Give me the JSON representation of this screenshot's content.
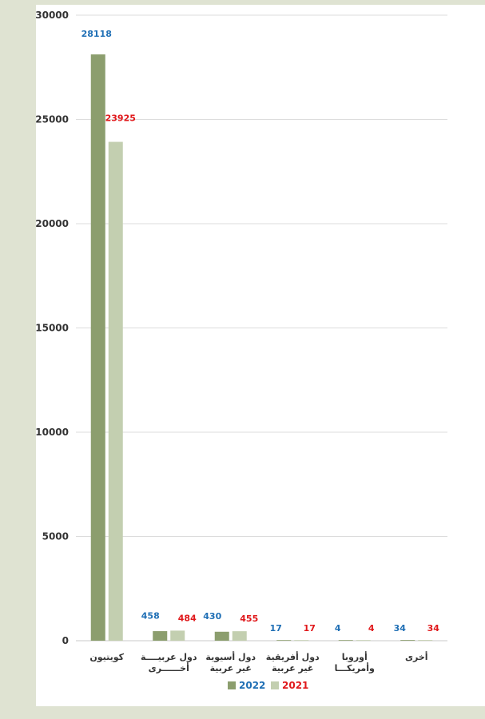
{
  "chart_data": {
    "type": "bar",
    "categories": [
      [
        "كويتيون"
      ],
      [
        "دول عربيــــة",
        "أخــــــرى"
      ],
      [
        "دول أسيوية",
        "غير عربية"
      ],
      [
        "دول أفريقية",
        "غير عربية"
      ],
      [
        "أوروبا",
        "وأمريكـــا"
      ],
      [
        "أخرى"
      ]
    ],
    "series": [
      {
        "name": "2022",
        "values": [
          28118,
          458,
          430,
          17,
          4,
          34
        ],
        "color": "#8c9e6e",
        "label_color": "#1f6fb5"
      },
      {
        "name": "2021",
        "values": [
          23925,
          484,
          455,
          17,
          4,
          34
        ],
        "color": "#c3cfb0",
        "label_color": "#e0181b"
      }
    ],
    "ylim": [
      0,
      30000
    ],
    "yticks": [
      0,
      5000,
      10000,
      15000,
      20000,
      25000,
      30000
    ],
    "grid": true,
    "legend": "bottom"
  }
}
